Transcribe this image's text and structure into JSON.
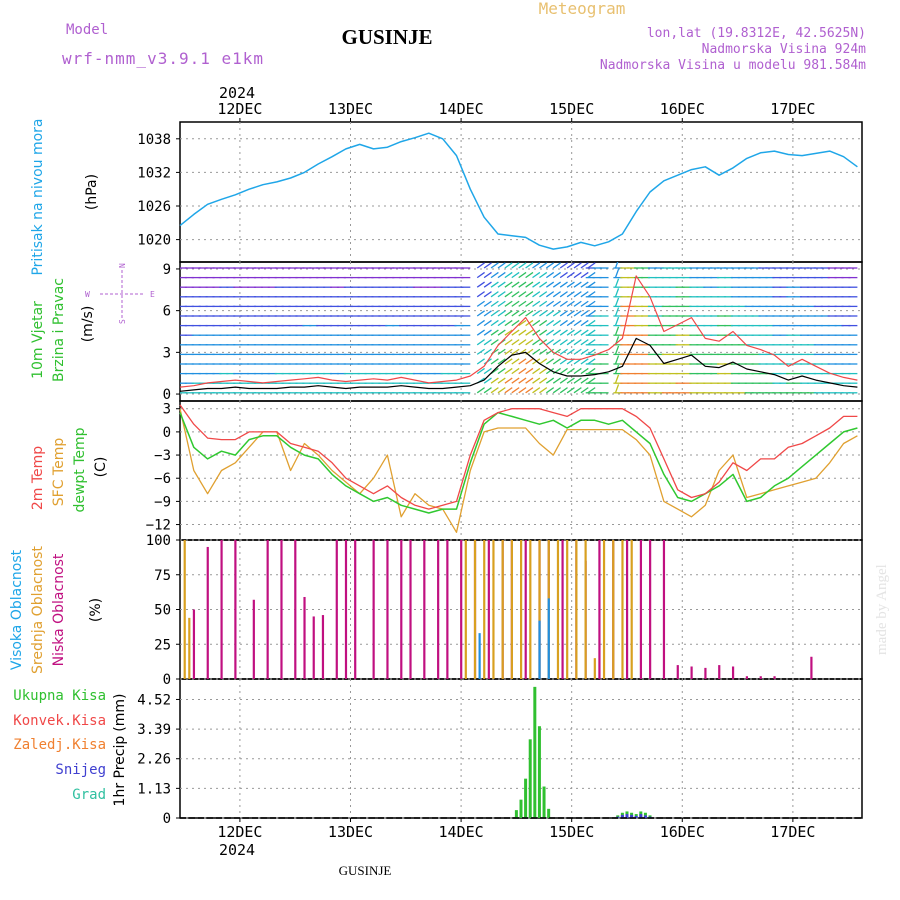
{
  "header": {
    "model_label": "Model",
    "model_name": "wrf-nmm_v3.9.1 e1km",
    "title": "GUSINJE",
    "meteogram": "Meteogram",
    "lonlat": "lon,lat (19.8312E, 42.5625N)",
    "elevation": "Nadmorska Visina 924m",
    "model_elevation": "Nadmorska Visina u modelu 981.584m",
    "footer": "GUSINJE",
    "watermark": "made by Angel"
  },
  "colors": {
    "pressure": "#1fa6e8",
    "t2m": "#f04848",
    "sfc": "#e0a030",
    "dewpt": "#30c830",
    "low_cloud": "#c01080",
    "mid_cloud": "#d8a020",
    "high_cloud": "#2090e0",
    "precip_total": "#30c030",
    "convective": "#f04848",
    "frozen": "#f08030",
    "snow": "#4040d0",
    "graupel": "#30c0a0",
    "wind_gust": "#f04848",
    "wind_mean": "#000000"
  },
  "chart_data": [
    {
      "type": "line",
      "title": "",
      "ylabel": "Pritisak na nivou mora",
      "yunit": "(hPa)",
      "year_label": "2024",
      "x_ticks": [
        "12DEC",
        "13DEC",
        "14DEC",
        "15DEC",
        "16DEC",
        "17DEC"
      ],
      "x": [
        0,
        3,
        6,
        9,
        12,
        15,
        18,
        21,
        24,
        27,
        30,
        33,
        36,
        39,
        42,
        45,
        48,
        51,
        54,
        57,
        60,
        63,
        66,
        69,
        72,
        75,
        78,
        81,
        84,
        87,
        90,
        93,
        96,
        99,
        102,
        105,
        108,
        111,
        114,
        117,
        120,
        123,
        126,
        129,
        132,
        135,
        138,
        141,
        144,
        147
      ],
      "ylim": [
        1016,
        1041
      ],
      "yticks": [
        1020,
        1026,
        1032,
        1038
      ],
      "series": [
        {
          "values": [
            1022.5,
            1024.5,
            1026.3,
            1027.2,
            1028.0,
            1029.0,
            1029.8,
            1030.3,
            1031.0,
            1032.0,
            1033.5,
            1034.8,
            1036.2,
            1037.0,
            1036.2,
            1036.5,
            1037.5,
            1038.2,
            1039.0,
            1038.0,
            1035.0,
            1029.0,
            1024.0,
            1021.0,
            1020.7,
            1020.4,
            1019.0,
            1018.3,
            1018.7,
            1019.5,
            1018.9,
            1019.6,
            1021.0,
            1025.0,
            1028.5,
            1030.5,
            1031.5,
            1032.5,
            1033.0,
            1031.5,
            1032.8,
            1034.5,
            1035.5,
            1035.8,
            1035.2,
            1035.0,
            1035.4,
            1035.8,
            1034.8,
            1033.0
          ]
        }
      ]
    },
    {
      "type": "line",
      "title": "",
      "ylabel_lines": [
        "10m Vjetar",
        "Brzina i Pravac"
      ],
      "yunit": "(m/s)",
      "compass": [
        "N",
        "W",
        "E",
        "S"
      ],
      "x": [
        0,
        3,
        6,
        9,
        12,
        15,
        18,
        21,
        24,
        27,
        30,
        33,
        36,
        39,
        42,
        45,
        48,
        51,
        54,
        57,
        60,
        63,
        66,
        69,
        72,
        75,
        78,
        81,
        84,
        87,
        90,
        93,
        96,
        99,
        102,
        105,
        108,
        111,
        114,
        117,
        120,
        123,
        126,
        129,
        132,
        135,
        138,
        141,
        144,
        147
      ],
      "ylim": [
        -0.5,
        9.5
      ],
      "yticks": [
        0,
        3,
        6,
        9
      ],
      "series": [
        {
          "name": "gust",
          "values": [
            0.5,
            0.6,
            0.8,
            0.9,
            1.0,
            0.9,
            0.8,
            0.9,
            1.0,
            1.1,
            1.2,
            1.0,
            0.9,
            1.0,
            1.1,
            1.0,
            1.2,
            1.0,
            0.8,
            0.9,
            1.0,
            1.3,
            2.0,
            3.5,
            4.5,
            5.5,
            4.0,
            3.0,
            2.5,
            2.5,
            2.8,
            3.2,
            4.0,
            8.5,
            7.0,
            4.5,
            5.0,
            5.5,
            4.0,
            3.8,
            4.5,
            3.5,
            3.2,
            2.8,
            2.0,
            2.5,
            2.0,
            1.5,
            1.2,
            1.0
          ]
        },
        {
          "name": "mean",
          "values": [
            0.2,
            0.3,
            0.4,
            0.4,
            0.5,
            0.4,
            0.4,
            0.4,
            0.5,
            0.5,
            0.6,
            0.5,
            0.4,
            0.5,
            0.5,
            0.5,
            0.6,
            0.5,
            0.4,
            0.4,
            0.5,
            0.6,
            1.0,
            2.0,
            2.8,
            3.0,
            2.2,
            1.6,
            1.3,
            1.3,
            1.4,
            1.6,
            2.0,
            4.0,
            3.5,
            2.2,
            2.5,
            2.8,
            2.0,
            1.9,
            2.3,
            1.8,
            1.6,
            1.4,
            1.0,
            1.3,
            1.0,
            0.8,
            0.6,
            0.5
          ]
        }
      ]
    },
    {
      "type": "line",
      "title": "",
      "ylabel_lines": [
        "2m Temp",
        "SFC Temp",
        "dewpt Temp"
      ],
      "yunit": "(C)",
      "x": [
        0,
        3,
        6,
        9,
        12,
        15,
        18,
        21,
        24,
        27,
        30,
        33,
        36,
        39,
        42,
        45,
        48,
        51,
        54,
        57,
        60,
        63,
        66,
        69,
        72,
        75,
        78,
        81,
        84,
        87,
        90,
        93,
        96,
        99,
        102,
        105,
        108,
        111,
        114,
        117,
        120,
        123,
        126,
        129,
        132,
        135,
        138,
        141,
        144,
        147
      ],
      "ylim": [
        -14,
        4
      ],
      "yticks": [
        3,
        0,
        -3,
        -6,
        -9,
        -12
      ],
      "series": [
        {
          "name": "2m Temp",
          "values": [
            3.5,
            1.0,
            -0.8,
            -1.0,
            -1.0,
            0.0,
            0.0,
            0.0,
            -1.5,
            -2.0,
            -2.5,
            -4.0,
            -6.0,
            -7.0,
            -8.0,
            -7.0,
            -8.5,
            -9.5,
            -10.0,
            -9.5,
            -9.0,
            -3.0,
            1.5,
            2.5,
            3.0,
            3.0,
            3.0,
            2.5,
            2.0,
            3.0,
            3.0,
            3.0,
            3.0,
            2.0,
            0.5,
            -3.5,
            -7.5,
            -8.5,
            -8.0,
            -6.5,
            -4.0,
            -5.0,
            -3.5,
            -3.5,
            -2.0,
            -1.5,
            -0.5,
            0.5,
            2.0,
            2.0
          ]
        },
        {
          "name": "SFC Temp",
          "values": [
            3.0,
            -5.0,
            -8.0,
            -5.0,
            -4.0,
            -2.0,
            0.0,
            0.0,
            -5.0,
            -1.5,
            -3.0,
            -5.0,
            -6.5,
            -8.0,
            -6.0,
            -3.0,
            -11.0,
            -8.0,
            -9.5,
            -10.0,
            -13.0,
            -5.0,
            0.0,
            0.5,
            0.5,
            0.5,
            -1.5,
            -3.0,
            0.3,
            0.3,
            0.3,
            0.3,
            0.3,
            -1.0,
            -3.0,
            -9.0,
            -10.0,
            -11.0,
            -9.5,
            -5.0,
            -3.0,
            -8.5,
            -8.0,
            -7.5,
            -7.0,
            -6.5,
            -6.0,
            -4.0,
            -1.5,
            -0.5
          ]
        },
        {
          "name": "dewpt Temp",
          "values": [
            2.5,
            -2.0,
            -3.5,
            -2.5,
            -3.0,
            -1.0,
            -0.5,
            -0.5,
            -2.0,
            -3.0,
            -3.5,
            -5.5,
            -7.0,
            -8.0,
            -9.0,
            -8.5,
            -9.5,
            -10.0,
            -10.5,
            -10.0,
            -10.0,
            -4.0,
            1.0,
            2.5,
            2.0,
            1.5,
            1.0,
            1.5,
            0.5,
            1.5,
            1.5,
            1.0,
            1.5,
            0.0,
            -1.5,
            -5.5,
            -8.5,
            -9.0,
            -8.0,
            -7.0,
            -5.5,
            -9.0,
            -8.5,
            -7.0,
            -6.0,
            -4.5,
            -3.0,
            -1.5,
            0.0,
            0.5
          ]
        }
      ]
    },
    {
      "type": "bar",
      "title": "",
      "ylabel_lines": [
        "Visoka Oblacnost",
        "Srednja Oblacnost",
        "Niska Oblacnost"
      ],
      "yunit": "(%)",
      "ylim": [
        0,
        100
      ],
      "yticks": [
        0,
        25,
        50,
        75,
        100
      ],
      "series": [
        {
          "name": "Niska Oblacnost",
          "x": [
            3,
            6,
            9,
            12,
            16,
            19,
            22,
            25,
            27,
            29,
            31,
            34,
            36,
            38,
            42,
            45,
            48,
            50,
            53,
            56,
            58,
            61,
            64,
            67,
            70,
            72,
            75,
            78,
            80,
            83,
            86,
            88,
            91,
            94,
            97,
            100,
            102,
            105,
            108,
            111,
            114,
            117,
            120,
            123,
            126,
            129,
            137
          ],
          "values": [
            50,
            95,
            100,
            100,
            57,
            100,
            100,
            100,
            59,
            45,
            46,
            100,
            100,
            100,
            100,
            100,
            100,
            100,
            100,
            100,
            100,
            100,
            100,
            100,
            100,
            100,
            100,
            100,
            100,
            100,
            100,
            85,
            100,
            100,
            100,
            100,
            100,
            100,
            10,
            9,
            8,
            10,
            9,
            2,
            2,
            2,
            16
          ]
        },
        {
          "name": "Srednja Oblacnost",
          "x": [
            1,
            2,
            62,
            64,
            66,
            68,
            70,
            72,
            74,
            76,
            78,
            80,
            82,
            84,
            86,
            88,
            90,
            92,
            94,
            96,
            98
          ],
          "values": [
            100,
            44,
            100,
            100,
            100,
            100,
            100,
            100,
            100,
            100,
            100,
            100,
            100,
            100,
            100,
            100,
            15,
            100,
            100,
            100,
            100
          ]
        },
        {
          "name": "Visoka Oblacnost",
          "x": [
            65,
            78,
            80
          ],
          "values": [
            33,
            42,
            58
          ]
        }
      ]
    },
    {
      "type": "bar",
      "title": "",
      "ylabel": "1hr Precip",
      "yunit": "(mm)",
      "ylim": [
        0,
        5.3
      ],
      "yticks": [
        0,
        1.13,
        2.26,
        3.39,
        4.52
      ],
      "legend": [
        "Ukupna Kisa",
        "Konvek.Kisa",
        "Zaledj.Kisa",
        "Snijeg",
        "Grad"
      ],
      "series": [
        {
          "name": "Ukupna Kisa",
          "x": [
            73,
            74,
            75,
            76,
            77,
            78,
            79,
            80,
            95,
            96,
            97,
            98,
            99,
            100,
            101,
            102
          ],
          "values": [
            0.3,
            0.7,
            1.5,
            3.0,
            5.0,
            3.5,
            1.2,
            0.35,
            0.1,
            0.2,
            0.25,
            0.2,
            0.15,
            0.25,
            0.2,
            0.1
          ]
        },
        {
          "name": "Snijeg",
          "x": [
            95,
            96,
            97,
            98,
            99,
            100,
            101,
            102
          ],
          "values": [
            0.05,
            0.12,
            0.15,
            0.12,
            0.08,
            0.15,
            0.1,
            0.05
          ]
        }
      ]
    }
  ]
}
